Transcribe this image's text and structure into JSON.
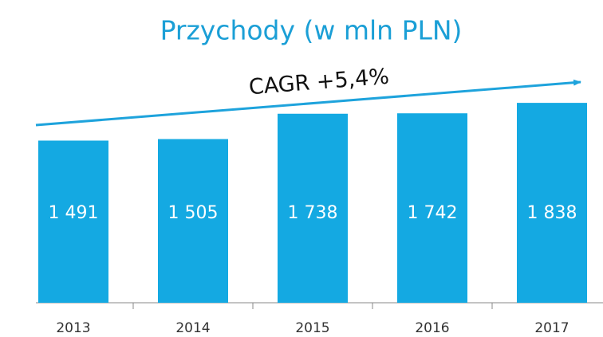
{
  "chart_data": {
    "type": "bar",
    "title": "Przychody (w mln PLN)",
    "annotation": "CAGR +5,4%",
    "categories": [
      "2013",
      "2014",
      "2015",
      "2016",
      "2017"
    ],
    "values": [
      1491,
      1505,
      1738,
      1742,
      1838
    ],
    "value_labels": [
      "1 491",
      "1 505",
      "1 738",
      "1 742",
      "1 838"
    ],
    "color": "#14a9e2",
    "ylim": [
      0,
      2000
    ]
  }
}
